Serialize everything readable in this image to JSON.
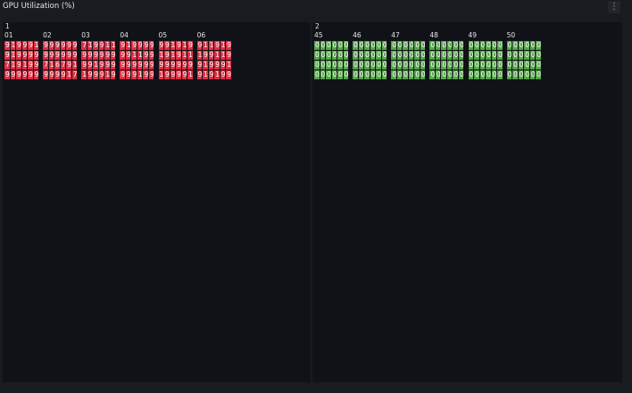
{
  "panel": {
    "title": "GPU Utilization (%)",
    "menu_icon": "kebab-menu-icon"
  },
  "colors": {
    "high": "#e02f44",
    "low": "#56a64b",
    "mid": "#e0b400"
  },
  "groups": [
    {
      "label": "1",
      "nodes": [
        {
          "id": "01",
          "values": [
            98,
            100,
            98,
            97,
            98,
            100,
            98,
            100,
            97,
            97,
            96,
            97,
            77,
            100,
            98,
            100,
            96,
            97,
            96,
            98,
            95,
            96,
            97,
            97
          ]
        },
        {
          "id": "02",
          "values": [
            98,
            97,
            96,
            97,
            96,
            97,
            98,
            96,
            97,
            96,
            96,
            96,
            70,
            100,
            69,
            70,
            98,
            100,
            98,
            99,
            97,
            96,
            100,
            76
          ]
        },
        {
          "id": "03",
          "values": [
            77,
            100,
            95,
            95,
            100,
            100,
            97,
            99,
            95,
            97,
            94,
            95,
            96,
            97,
            100,
            97,
            97,
            96,
            100,
            98,
            97,
            97,
            100,
            96
          ]
        },
        {
          "id": "04",
          "values": [
            95,
            100,
            98,
            98,
            97,
            98,
            96,
            98,
            100,
            100,
            97,
            98,
            95,
            97,
            97,
            96,
            97,
            97,
            97,
            97,
            97,
            100,
            97,
            99
          ]
        },
        {
          "id": "05",
          "values": [
            96,
            97,
            100,
            97,
            100,
            96,
            100,
            96,
            100,
            97,
            100,
            100,
            96,
            97,
            97,
            97,
            98,
            97,
            100,
            96,
            98,
            97,
            97,
            100
          ]
        },
        {
          "id": "06",
          "values": [
            98,
            100,
            100,
            98,
            100,
            96,
            100,
            96,
            97,
            100,
            100,
            96,
            95,
            100,
            96,
            95,
            97,
            100,
            95,
            100,
            97,
            100,
            97,
            97
          ]
        }
      ]
    },
    {
      "label": "2",
      "nodes": [
        {
          "id": "45",
          "values": [
            0,
            0,
            0,
            0,
            0,
            0,
            0,
            0,
            0,
            0,
            0,
            0,
            0,
            0,
            0,
            0,
            0,
            0,
            0,
            0,
            0,
            0,
            0,
            0
          ]
        },
        {
          "id": "46",
          "values": [
            0,
            0,
            0,
            0,
            0,
            0,
            0,
            0,
            0,
            0,
            0,
            0,
            0,
            0,
            0,
            0,
            0,
            0,
            0,
            0,
            0,
            0,
            0,
            0
          ]
        },
        {
          "id": "47",
          "values": [
            0,
            0,
            0,
            0,
            0,
            0,
            0,
            0,
            0,
            0,
            0,
            0,
            0,
            0,
            0,
            0,
            0,
            0,
            0,
            0,
            0,
            0,
            0,
            0
          ]
        },
        {
          "id": "48",
          "values": [
            0,
            0,
            0,
            0,
            0,
            0,
            0,
            0,
            0,
            0,
            0,
            0,
            0,
            0,
            0,
            0,
            0,
            0,
            0,
            0,
            0,
            0,
            0,
            0
          ]
        },
        {
          "id": "49",
          "values": [
            0,
            0,
            0,
            0,
            0,
            0,
            0,
            0,
            0,
            0,
            0,
            0,
            0,
            0,
            0,
            0,
            0,
            0,
            0,
            0,
            0,
            0,
            0,
            0
          ]
        },
        {
          "id": "50",
          "values": [
            0,
            0,
            0,
            0,
            0,
            0,
            0,
            0,
            0,
            0,
            0,
            0,
            0,
            0,
            0,
            0,
            0,
            0,
            0,
            0,
            0,
            0,
            0,
            0
          ]
        }
      ]
    }
  ]
}
